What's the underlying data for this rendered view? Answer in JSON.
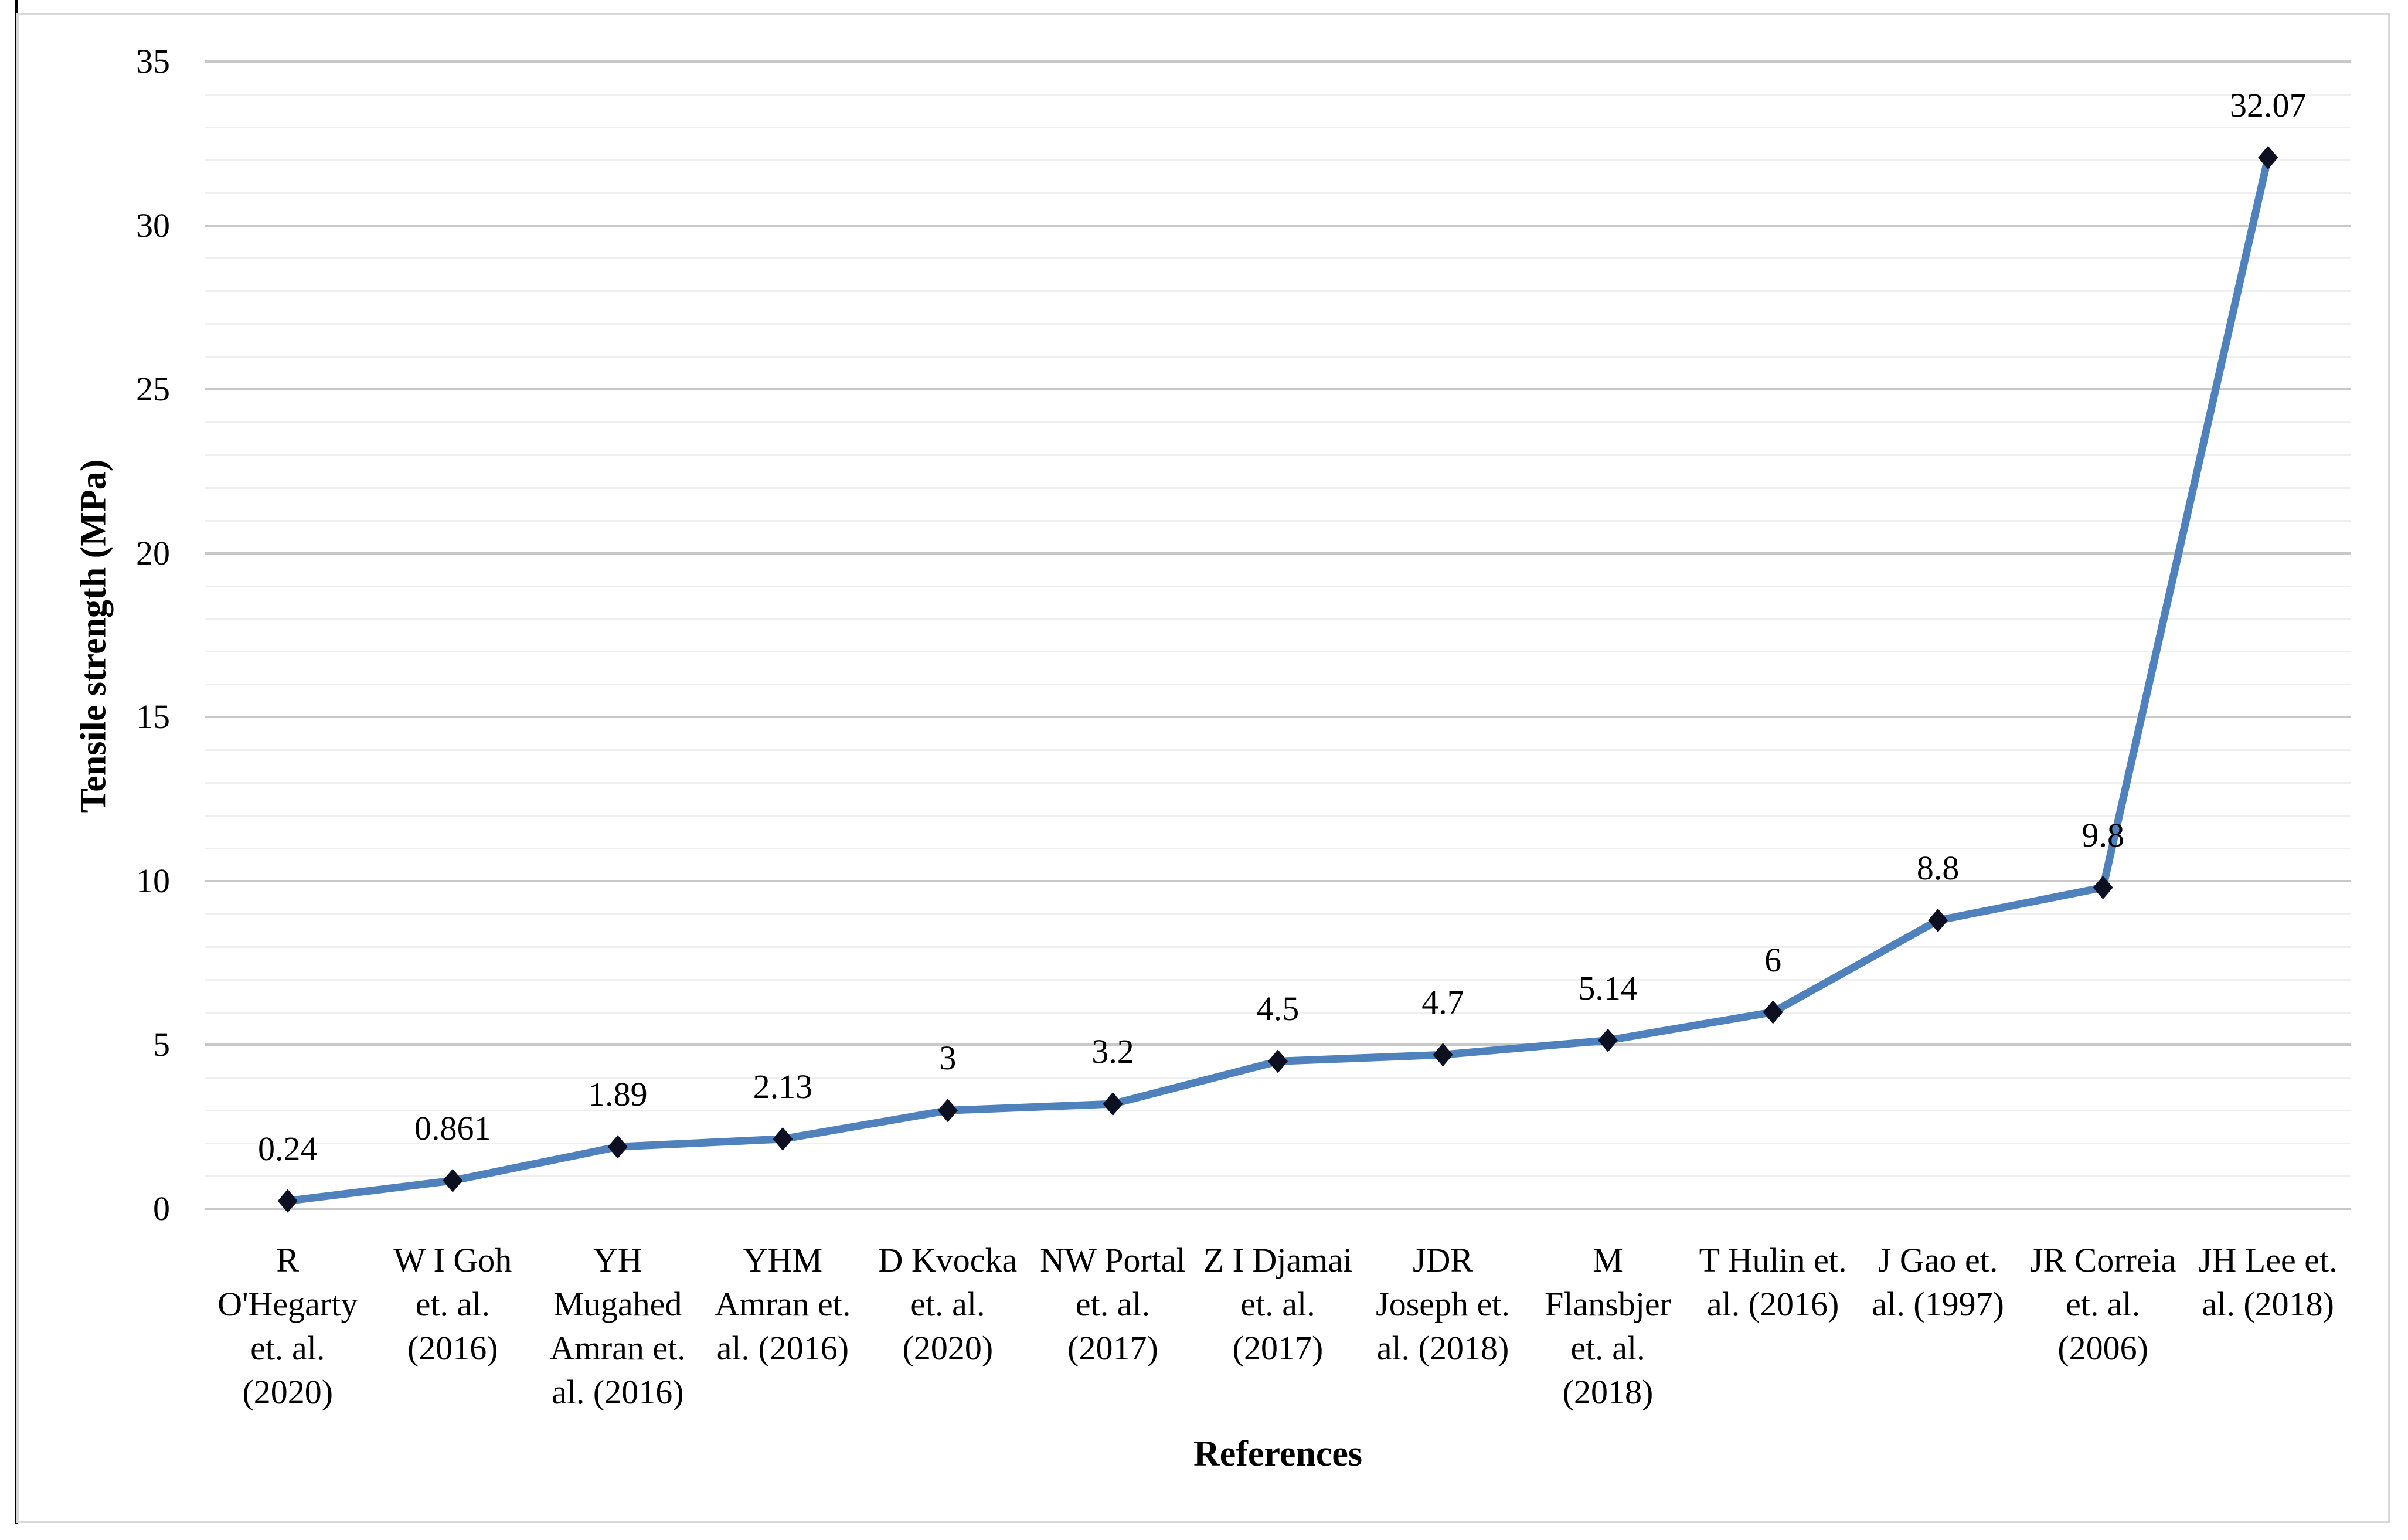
{
  "chart_data": {
    "type": "line",
    "title": "",
    "xlabel": "References",
    "ylabel": "Tensile strength (MPa)",
    "categories": [
      "R O'Hegarty et. al. (2020)",
      "W I Goh et. al. (2016)",
      "YH Mugahed Amran et. al. (2016)",
      "YHM Amran et. al. (2016)",
      "D Kvocka et. al. (2020)",
      "NW Portal et. al. (2017)",
      "Z I Djamai et. al. (2017)",
      "JDR Joseph et. al. (2018)",
      "M Flansbjer et. al. (2018)",
      "T Hulin et. al. (2016)",
      "J Gao et. al. (1997)",
      "JR Correia et. al. (2006)",
      "JH Lee et. al. (2018)"
    ],
    "category_lines": [
      [
        "R",
        "O'Hegarty",
        "et. al.",
        "(2020)"
      ],
      [
        "W I Goh",
        "et. al.",
        "(2016)"
      ],
      [
        "YH",
        "Mugahed",
        "Amran et.",
        "al. (2016)"
      ],
      [
        "YHM",
        "Amran et.",
        "al. (2016)"
      ],
      [
        "D Kvocka",
        "et. al.",
        "(2020)"
      ],
      [
        "NW Portal",
        "et. al.",
        "(2017)"
      ],
      [
        "Z I Djamai",
        "et. al.",
        "(2017)"
      ],
      [
        "JDR",
        "Joseph et.",
        "al. (2018)"
      ],
      [
        "M",
        "Flansbjer",
        "et. al.",
        "(2018)"
      ],
      [
        "T Hulin et.",
        "al. (2016)"
      ],
      [
        "J Gao et.",
        "al. (1997)"
      ],
      [
        "JR Correia",
        "et. al.",
        "(2006)"
      ],
      [
        "JH Lee et.",
        "al. (2018)"
      ]
    ],
    "values": [
      0.24,
      0.861,
      1.89,
      2.13,
      3,
      3.2,
      4.5,
      4.7,
      5.14,
      6,
      8.8,
      9.8,
      32.07
    ],
    "point_labels": [
      "0.24",
      "0.861",
      "1.89",
      "2.13",
      "3",
      "3.2",
      "4.5",
      "4.7",
      "5.14",
      "6",
      "8.8",
      "9.8",
      "32.07"
    ],
    "ylim": [
      0,
      35
    ],
    "yticks": [
      0,
      5,
      10,
      15,
      20,
      25,
      30,
      35
    ],
    "major_unit": 5,
    "minor_unit": 1,
    "grid": true,
    "legend": false,
    "marker": "diamond",
    "colors": {
      "line": "#4F81BD",
      "marker": "#0d1020",
      "major_gridline": "#c8c8c8",
      "minor_gridline": "#efefef",
      "chart_border": "#d9d9d9",
      "edge_line": "#000000",
      "text": "#000000"
    }
  }
}
